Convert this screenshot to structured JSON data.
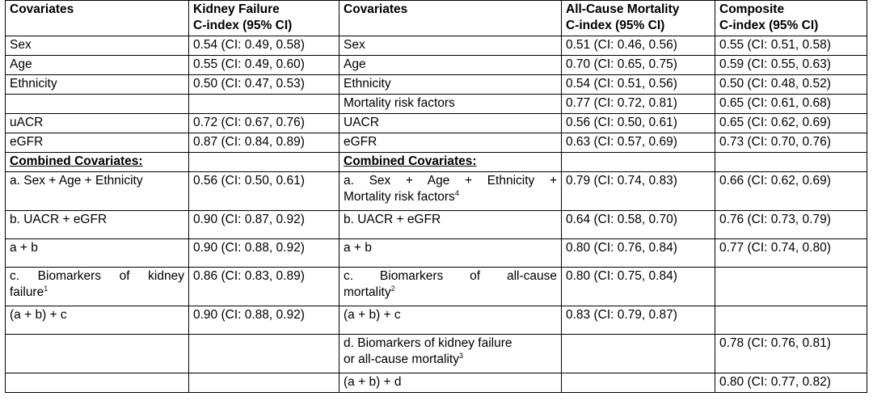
{
  "headers": {
    "col1": "Covariates",
    "col2_line1": "Kidney Failure",
    "col2_line2": "C-index (95% CI)",
    "col3": "Covariates",
    "col4_line1": "All-Cause Mortality",
    "col4_line2": "C-index (95% CI)",
    "col5_line1": "Composite",
    "col5_line2": "C-index (95% CI)"
  },
  "rows": {
    "sex": {
      "kf_cov": "Sex",
      "kf": "0.54 (CI: 0.49, 0.58)",
      "m_cov": "Sex",
      "m": "0.51 (CI: 0.46, 0.56)",
      "c": "0.55 (CI: 0.51, 0.58)"
    },
    "age": {
      "kf_cov": "Age",
      "kf": "0.55 (CI: 0.49, 0.60)",
      "m_cov": "Age",
      "m": "0.70 (CI: 0.65, 0.75)",
      "c": "0.59 (CI: 0.55, 0.63)"
    },
    "ethnicity": {
      "kf_cov": "Ethnicity",
      "kf": "0.50 (CI: 0.47, 0.53)",
      "m_cov": "Ethnicity",
      "m": "0.54 (CI: 0.51, 0.56)",
      "c": "0.50 (CI: 0.48, 0.52)"
    },
    "mrf": {
      "m_cov": "Mortality risk factors",
      "m": "0.77 (CI: 0.72, 0.81)",
      "c": "0.65 (CI: 0.61, 0.68)"
    },
    "uacr": {
      "kf_cov": "uACR",
      "kf": "0.72 (CI: 0.67, 0.76)",
      "m_cov": "UACR",
      "m": "0.56 (CI: 0.50, 0.61)",
      "c": "0.65 (CI: 0.62, 0.69)"
    },
    "egfr": {
      "kf_cov": "eGFR",
      "kf": "0.87 (CI: 0.84, 0.89)",
      "m_cov": "eGFR",
      "m": "0.63 (CI: 0.57, 0.69)",
      "c": "0.73 (CI: 0.70, 0.76)"
    },
    "combined": {
      "kf_cov": "Combined Covariates:",
      "m_cov": "Combined Covariates:"
    },
    "a": {
      "kf_cov": "a. Sex + Age + Ethnicity",
      "kf": "0.56 (CI: 0.50, 0.61)",
      "m_cov_line1": "a. Sex + Age + Ethnicity +",
      "m_cov_line2": "Mortality risk factors",
      "m_sup": "4",
      "m": "0.79 (CI: 0.74, 0.83)",
      "c": "0.66 (CI: 0.62, 0.69)"
    },
    "b": {
      "kf_cov": "b. UACR + eGFR",
      "kf": "0.90 (CI: 0.87, 0.92)",
      "m_cov": "b. UACR + eGFR",
      "m": "0.64 (CI: 0.58, 0.70)",
      "c": "0.76 (CI: 0.73, 0.79)"
    },
    "ab": {
      "kf_cov": "a + b",
      "kf": "0.90 (CI: 0.88, 0.92)",
      "m_cov": "a + b",
      "m": "0.80 (CI: 0.76, 0.84)",
      "c": "0.77 (CI: 0.74, 0.80)"
    },
    "c": {
      "kf_cov_line1": "c. Biomarkers of kidney",
      "kf_cov_line2": "failure",
      "kf_sup": "1",
      "kf": "0.86 (CI: 0.83, 0.89)",
      "m_cov_line1": "c. Biomarkers of all-cause",
      "m_cov_line2": "mortality",
      "m_sup": "2",
      "m": "0.80 (CI: 0.75, 0.84)"
    },
    "abc": {
      "kf_cov": "(a + b) + c",
      "kf": "0.90 (CI: 0.88, 0.92)",
      "m_cov": "(a + b) + c",
      "m": "0.83 (CI: 0.79, 0.87)"
    },
    "d": {
      "m_cov_line1": "d. Biomarkers of kidney failure",
      "m_cov_line2": "or all-cause mortality",
      "m_sup": "3",
      "c": "0.78 (CI: 0.76, 0.81)"
    },
    "abd": {
      "m_cov": "(a + b) + d",
      "c": "0.80 (CI: 0.77, 0.82)"
    }
  }
}
